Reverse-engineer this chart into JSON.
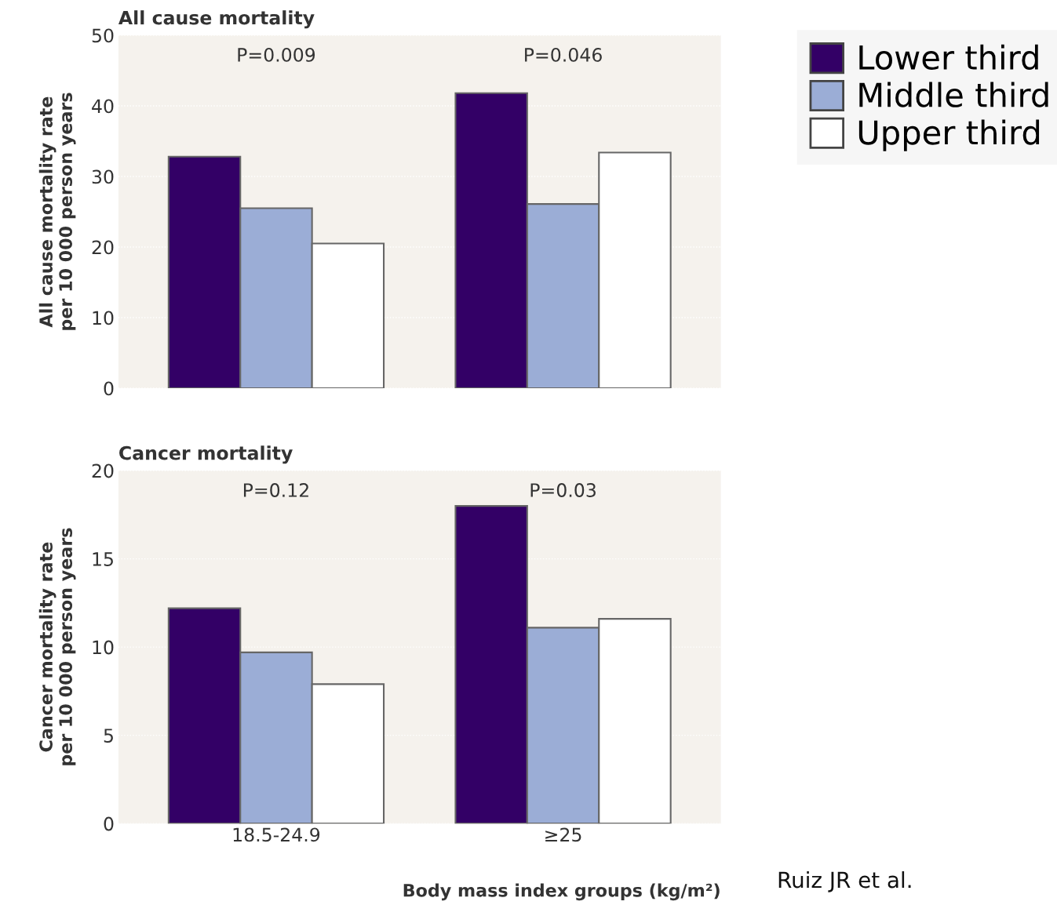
{
  "chart_data": [
    {
      "type": "bar",
      "title": "All cause mortality",
      "ylabel": "All cause mortality rate\nper 10 000 person years",
      "categories": [
        null,
        null
      ],
      "series": [
        {
          "name": "Lower third",
          "color": "#330066",
          "values": [
            32.8,
            41.8
          ]
        },
        {
          "name": "Middle third",
          "color": "#9badd6",
          "values": [
            25.5,
            26.1
          ]
        },
        {
          "name": "Upper third",
          "color": "#ffffff",
          "values": [
            20.5,
            33.4
          ]
        }
      ],
      "ylim": [
        0,
        50
      ],
      "yticks": [
        0,
        10,
        20,
        30,
        40,
        50
      ],
      "grid": "y",
      "legend": "top right",
      "tick_labels": "y",
      "annotations": [
        "P=0.009",
        "P=0.046"
      ]
    },
    {
      "type": "bar",
      "title": "Cancer mortality",
      "ylabel": "Cancer mortality rate\nper 10 000 person years",
      "xlabel": "Body mass index groups (kg/m²)",
      "categories": [
        "18.5-24.9",
        "≥25"
      ],
      "series": [
        {
          "color": "#330066",
          "values": [
            12.2,
            18.0
          ]
        },
        {
          "color": "#9badd6",
          "values": [
            9.7,
            11.1
          ]
        },
        {
          "color": "#ffffff",
          "values": [
            7.9,
            11.6
          ]
        }
      ],
      "ylim": [
        0,
        20
      ],
      "yticks": [
        0,
        5,
        10,
        15,
        20
      ],
      "grid": "y",
      "annotations": [
        "P=0.12",
        "P=0.03",
        "Ruiz JR et al."
      ]
    }
  ]
}
